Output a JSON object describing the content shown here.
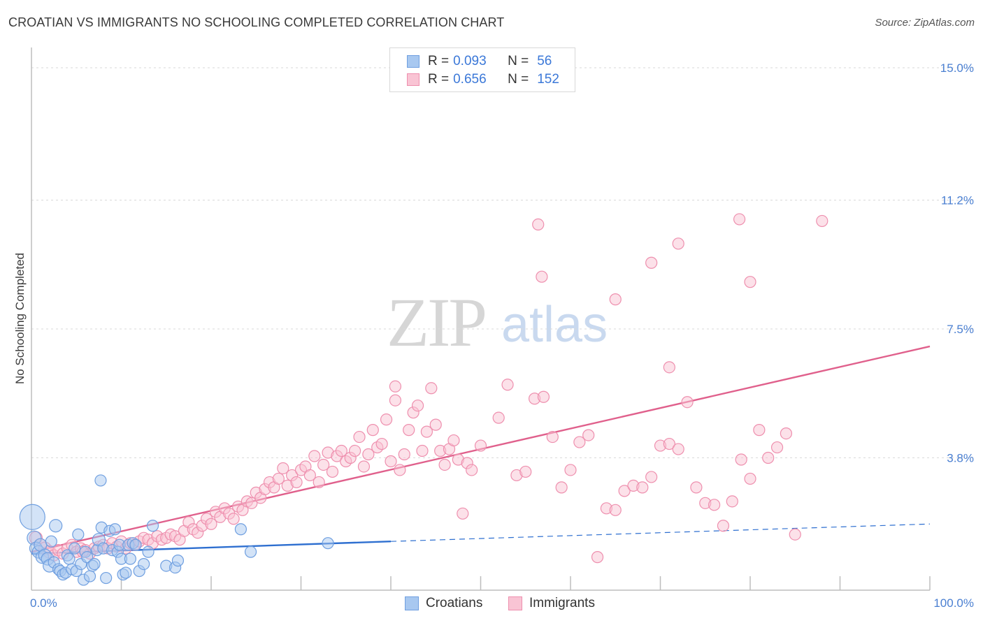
{
  "title": "CROATIAN VS IMMIGRANTS NO SCHOOLING COMPLETED CORRELATION CHART",
  "source": "Source: ZipAtlas.com",
  "watermark": {
    "part1": "ZIP",
    "part2": "atlas"
  },
  "legend": {
    "rows": [
      {
        "r_label": "R =",
        "r_value": "0.093",
        "n_label": "N =",
        "n_value": "56",
        "color": "#a8c8f0",
        "border": "#6f9fe0"
      },
      {
        "r_label": "R =",
        "r_value": "0.656",
        "n_label": "N =",
        "n_value": "152",
        "color": "#f9c4d4",
        "border": "#ee8fae"
      }
    ],
    "bottom": [
      {
        "label": "Croatians",
        "color": "#a8c8f0",
        "border": "#6f9fe0"
      },
      {
        "label": "Immigrants",
        "color": "#f9c4d4",
        "border": "#ee8fae"
      }
    ]
  },
  "chart_data": {
    "type": "scatter",
    "title": "CROATIAN VS IMMIGRANTS NO SCHOOLING COMPLETED CORRELATION CHART",
    "xlabel": "",
    "ylabel": "No Schooling Completed",
    "xlim": [
      0,
      100
    ],
    "ylim": [
      0,
      15
    ],
    "x_tick_labels": [
      "0.0%",
      "100.0%"
    ],
    "y_ticks": [
      3.8,
      7.5,
      11.2,
      15.0
    ],
    "y_tick_labels": [
      "3.8%",
      "7.5%",
      "11.2%",
      "15.0%"
    ],
    "grid": true,
    "legend_position": "top-center",
    "series": [
      {
        "name": "Croatians",
        "color": "#6f9fe0",
        "fill": "#a8c8f0",
        "trend": {
          "x0": 0,
          "y0": 1.05,
          "x1": 40,
          "y1": 1.4,
          "dash_to": 100,
          "dash_y": 1.9,
          "color": "#2e6fd0"
        },
        "points": [
          [
            0.1,
            2.1,
            18
          ],
          [
            0.3,
            1.5,
            10
          ],
          [
            0.5,
            1.2,
            9
          ],
          [
            0.8,
            1.1,
            9
          ],
          [
            1.0,
            1.3,
            9
          ],
          [
            1.2,
            0.95,
            9
          ],
          [
            1.5,
            1.0,
            9
          ],
          [
            1.8,
            0.9,
            9
          ],
          [
            2.0,
            0.7,
            9
          ],
          [
            2.2,
            1.4,
            8
          ],
          [
            2.5,
            0.8,
            8
          ],
          [
            2.7,
            1.85,
            9
          ],
          [
            3.0,
            0.6,
            8
          ],
          [
            3.2,
            0.55,
            8
          ],
          [
            3.5,
            0.45,
            8
          ],
          [
            3.8,
            0.5,
            8
          ],
          [
            4.0,
            1.0,
            8
          ],
          [
            4.2,
            0.9,
            8
          ],
          [
            4.5,
            0.6,
            8
          ],
          [
            4.8,
            1.2,
            8
          ],
          [
            5.0,
            0.55,
            8
          ],
          [
            5.2,
            1.6,
            8
          ],
          [
            5.5,
            0.75,
            8
          ],
          [
            5.8,
            0.3,
            8
          ],
          [
            6.0,
            1.1,
            8
          ],
          [
            6.2,
            0.95,
            8
          ],
          [
            6.5,
            0.4,
            8
          ],
          [
            6.8,
            0.7,
            8
          ],
          [
            7.0,
            0.75,
            8
          ],
          [
            7.3,
            1.15,
            8
          ],
          [
            7.5,
            1.45,
            9
          ],
          [
            7.8,
            1.8,
            8
          ],
          [
            8.0,
            1.2,
            8
          ],
          [
            8.3,
            0.35,
            8
          ],
          [
            8.7,
            1.7,
            8
          ],
          [
            9.0,
            1.15,
            8
          ],
          [
            9.3,
            1.75,
            8
          ],
          [
            9.6,
            1.1,
            8
          ],
          [
            9.8,
            1.3,
            8
          ],
          [
            10.0,
            0.9,
            8
          ],
          [
            10.2,
            0.45,
            8
          ],
          [
            10.5,
            0.5,
            8
          ],
          [
            10.8,
            1.3,
            8
          ],
          [
            11.0,
            0.9,
            8
          ],
          [
            11.3,
            1.35,
            8
          ],
          [
            11.6,
            1.3,
            8
          ],
          [
            12.0,
            0.55,
            8
          ],
          [
            12.5,
            0.75,
            8
          ],
          [
            13.0,
            1.1,
            8
          ],
          [
            13.5,
            1.85,
            8
          ],
          [
            15.0,
            0.7,
            8
          ],
          [
            16.0,
            0.65,
            8
          ],
          [
            16.3,
            0.85,
            8
          ],
          [
            7.7,
            3.15,
            8
          ],
          [
            23.3,
            1.75,
            8
          ],
          [
            24.4,
            1.1,
            8
          ],
          [
            33.0,
            1.35,
            8
          ]
        ]
      },
      {
        "name": "Immigrants",
        "color": "#ee8fae",
        "fill": "#f9c4d4",
        "trend": {
          "x0": 0,
          "y0": 1.1,
          "x1": 100,
          "y1": 7.0,
          "color": "#e0608c"
        },
        "points": [
          [
            0.5,
            1.5,
            9
          ],
          [
            1.0,
            1.3,
            9
          ],
          [
            1.5,
            1.2,
            9
          ],
          [
            2.0,
            1.1,
            9
          ],
          [
            2.5,
            1.0,
            8
          ],
          [
            3.0,
            1.15,
            8
          ],
          [
            3.5,
            1.05,
            8
          ],
          [
            4.0,
            1.2,
            8
          ],
          [
            4.5,
            1.3,
            8
          ],
          [
            5.0,
            1.1,
            8
          ],
          [
            5.5,
            1.2,
            8
          ],
          [
            6.0,
            1.15,
            8
          ],
          [
            6.5,
            1.05,
            8
          ],
          [
            7.0,
            1.2,
            8
          ],
          [
            7.5,
            1.25,
            8
          ],
          [
            8.0,
            1.3,
            8
          ],
          [
            8.5,
            1.2,
            8
          ],
          [
            9.0,
            1.35,
            8
          ],
          [
            9.5,
            1.25,
            8
          ],
          [
            10.0,
            1.4,
            8
          ],
          [
            10.5,
            1.2,
            8
          ],
          [
            11.0,
            1.35,
            8
          ],
          [
            11.5,
            1.3,
            8
          ],
          [
            12.0,
            1.4,
            8
          ],
          [
            12.5,
            1.5,
            8
          ],
          [
            13.0,
            1.45,
            8
          ],
          [
            13.5,
            1.35,
            8
          ],
          [
            14.0,
            1.55,
            8
          ],
          [
            14.5,
            1.45,
            8
          ],
          [
            15.0,
            1.5,
            8
          ],
          [
            15.5,
            1.6,
            8
          ],
          [
            16.0,
            1.55,
            8
          ],
          [
            16.5,
            1.45,
            8
          ],
          [
            17.0,
            1.7,
            8
          ],
          [
            17.5,
            1.95,
            8
          ],
          [
            18.0,
            1.75,
            8
          ],
          [
            18.5,
            1.65,
            8
          ],
          [
            19.0,
            1.85,
            8
          ],
          [
            19.5,
            2.05,
            8
          ],
          [
            20.0,
            1.9,
            8
          ],
          [
            20.5,
            2.25,
            8
          ],
          [
            21.0,
            2.1,
            8
          ],
          [
            21.5,
            2.35,
            8
          ],
          [
            22.0,
            2.2,
            8
          ],
          [
            22.5,
            2.05,
            8
          ],
          [
            23.0,
            2.4,
            8
          ],
          [
            23.5,
            2.3,
            8
          ],
          [
            24.0,
            2.55,
            8
          ],
          [
            24.5,
            2.5,
            8
          ],
          [
            25.0,
            2.8,
            8
          ],
          [
            25.5,
            2.65,
            8
          ],
          [
            26.0,
            2.9,
            8
          ],
          [
            26.5,
            3.1,
            8
          ],
          [
            27.0,
            2.95,
            8
          ],
          [
            27.5,
            3.2,
            8
          ],
          [
            28.0,
            3.5,
            8
          ],
          [
            28.5,
            3.0,
            8
          ],
          [
            29.0,
            3.3,
            8
          ],
          [
            29.5,
            3.1,
            8
          ],
          [
            30.0,
            3.45,
            8
          ],
          [
            30.5,
            3.55,
            8
          ],
          [
            31.0,
            3.3,
            8
          ],
          [
            31.5,
            3.85,
            8
          ],
          [
            32.0,
            3.1,
            8
          ],
          [
            32.5,
            3.6,
            8
          ],
          [
            33.0,
            3.95,
            8
          ],
          [
            33.5,
            3.4,
            8
          ],
          [
            34.0,
            3.85,
            8
          ],
          [
            34.5,
            4.0,
            8
          ],
          [
            35.0,
            3.7,
            8
          ],
          [
            35.5,
            3.8,
            8
          ],
          [
            36.0,
            4.0,
            8
          ],
          [
            36.5,
            4.4,
            8
          ],
          [
            37.0,
            3.55,
            8
          ],
          [
            37.5,
            3.9,
            8
          ],
          [
            38.0,
            4.6,
            8
          ],
          [
            38.5,
            4.1,
            8
          ],
          [
            39.0,
            4.2,
            8
          ],
          [
            39.5,
            4.9,
            8
          ],
          [
            40.0,
            3.7,
            8
          ],
          [
            40.5,
            5.45,
            8
          ],
          [
            41.0,
            3.45,
            8
          ],
          [
            41.5,
            3.9,
            8
          ],
          [
            42.0,
            4.6,
            8
          ],
          [
            42.5,
            5.1,
            8
          ],
          [
            43.0,
            5.3,
            8
          ],
          [
            43.5,
            4.0,
            8
          ],
          [
            44.0,
            4.55,
            8
          ],
          [
            44.5,
            5.8,
            8
          ],
          [
            45.0,
            4.75,
            8
          ],
          [
            45.5,
            4.0,
            8
          ],
          [
            46.0,
            3.6,
            8
          ],
          [
            46.5,
            4.05,
            8
          ],
          [
            47.0,
            4.3,
            8
          ],
          [
            47.5,
            3.75,
            8
          ],
          [
            48.0,
            2.2,
            8
          ],
          [
            48.5,
            3.65,
            8
          ],
          [
            49.0,
            3.45,
            8
          ],
          [
            50.0,
            4.15,
            8
          ],
          [
            52.0,
            4.95,
            8
          ],
          [
            53.0,
            5.9,
            8
          ],
          [
            54.0,
            3.3,
            8
          ],
          [
            55.0,
            3.4,
            8
          ],
          [
            56.0,
            5.5,
            8
          ],
          [
            57.0,
            5.55,
            8
          ],
          [
            58.0,
            4.4,
            8
          ],
          [
            59.0,
            2.95,
            8
          ],
          [
            60.0,
            3.45,
            8
          ],
          [
            61.0,
            4.25,
            8
          ],
          [
            62.0,
            4.45,
            8
          ],
          [
            63.0,
            0.95,
            8
          ],
          [
            64.0,
            2.35,
            8
          ],
          [
            65.0,
            2.3,
            8
          ],
          [
            66.0,
            2.85,
            8
          ],
          [
            67.0,
            3.0,
            8
          ],
          [
            68.0,
            2.95,
            8
          ],
          [
            69.0,
            3.25,
            8
          ],
          [
            70.0,
            4.15,
            8
          ],
          [
            71.0,
            4.2,
            8
          ],
          [
            72.0,
            4.05,
            8
          ],
          [
            73.0,
            5.4,
            8
          ],
          [
            74.0,
            2.95,
            8
          ],
          [
            75.0,
            2.5,
            8
          ],
          [
            76.0,
            2.45,
            8
          ],
          [
            77.0,
            1.85,
            8
          ],
          [
            78.0,
            2.55,
            8
          ],
          [
            79.0,
            3.75,
            8
          ],
          [
            80.0,
            3.2,
            8
          ],
          [
            81.0,
            4.6,
            8
          ],
          [
            82.0,
            3.8,
            8
          ],
          [
            83.0,
            4.1,
            8
          ],
          [
            84.0,
            4.5,
            8
          ],
          [
            85.0,
            1.6,
            8
          ],
          [
            5.7,
            1.1,
            8
          ],
          [
            56.4,
            10.5,
            8
          ],
          [
            56.8,
            9.0,
            8
          ],
          [
            65.0,
            8.35,
            8
          ],
          [
            69.0,
            9.4,
            8
          ],
          [
            71.0,
            6.4,
            8
          ],
          [
            72.0,
            9.95,
            8
          ],
          [
            78.8,
            10.65,
            8
          ],
          [
            80.0,
            8.85,
            8
          ],
          [
            88.0,
            10.6,
            8
          ],
          [
            40.5,
            5.85,
            8
          ]
        ]
      }
    ]
  }
}
